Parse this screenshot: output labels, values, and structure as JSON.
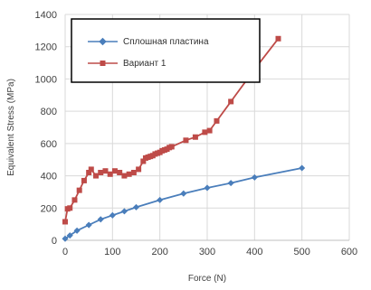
{
  "chart_data": {
    "type": "line",
    "xlabel": "Force (N)",
    "ylabel": "Equivalent Stress (MPa)",
    "xlim": [
      0,
      600
    ],
    "ylim": [
      0,
      1400
    ],
    "xticks": [
      0,
      100,
      200,
      300,
      400,
      500,
      600
    ],
    "yticks": [
      0,
      200,
      400,
      600,
      800,
      1000,
      1200,
      1400
    ],
    "grid": true,
    "legend_position": "top-left",
    "series": [
      {
        "name": "Сплошная пластина",
        "color": "#4a7ebb",
        "marker": "diamond",
        "x": [
          0,
          10,
          25,
          50,
          75,
          100,
          125,
          150,
          200,
          250,
          300,
          350,
          400,
          500
        ],
        "y": [
          10,
          30,
          60,
          95,
          130,
          155,
          180,
          205,
          250,
          290,
          325,
          355,
          390,
          448
        ]
      },
      {
        "name": "Вариант 1",
        "color": "#be4b48",
        "marker": "square",
        "x": [
          0,
          5,
          10,
          20,
          30,
          40,
          50,
          55,
          65,
          75,
          85,
          95,
          105,
          115,
          125,
          135,
          145,
          155,
          165,
          170,
          175,
          180,
          185,
          190,
          195,
          200,
          205,
          210,
          215,
          220,
          225,
          255,
          275,
          295,
          305,
          320,
          350,
          400,
          450
        ],
        "y": [
          115,
          195,
          200,
          250,
          310,
          370,
          420,
          440,
          400,
          420,
          430,
          410,
          430,
          420,
          400,
          410,
          420,
          440,
          490,
          510,
          515,
          520,
          525,
          535,
          540,
          545,
          555,
          560,
          565,
          575,
          580,
          620,
          640,
          670,
          680,
          740,
          860,
          1060,
          1250
        ]
      }
    ]
  }
}
